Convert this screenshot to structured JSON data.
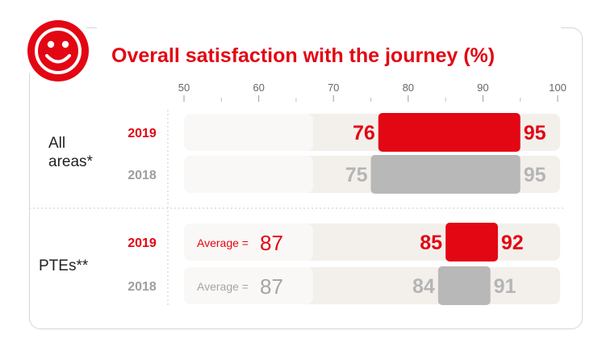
{
  "colors": {
    "accent": "#e30613",
    "grey_bar": "#b8b8b8",
    "grey_text": "#b5b5b5",
    "track": "#f3f0ec",
    "card_border": "#d6d6d6"
  },
  "icon": "smiley-face-icon",
  "chart_data": {
    "type": "range-bar",
    "title": "Overall satisfaction with the journey (%)",
    "xlim": [
      50,
      100
    ],
    "ticks": [
      50,
      60,
      70,
      80,
      90,
      100
    ],
    "groups": [
      {
        "label": "All\nareas*",
        "rows": [
          {
            "year": "2019",
            "low": 76,
            "high": 95,
            "highlight": true
          },
          {
            "year": "2018",
            "low": 75,
            "high": 95,
            "highlight": false
          }
        ]
      },
      {
        "label": "PTEs**",
        "rows": [
          {
            "year": "2019",
            "low": 85,
            "high": 92,
            "highlight": true,
            "average_label": "Average =",
            "average": 87
          },
          {
            "year": "2018",
            "low": 84,
            "high": 91,
            "highlight": false,
            "average_label": "Average =",
            "average": 87
          }
        ]
      }
    ]
  }
}
